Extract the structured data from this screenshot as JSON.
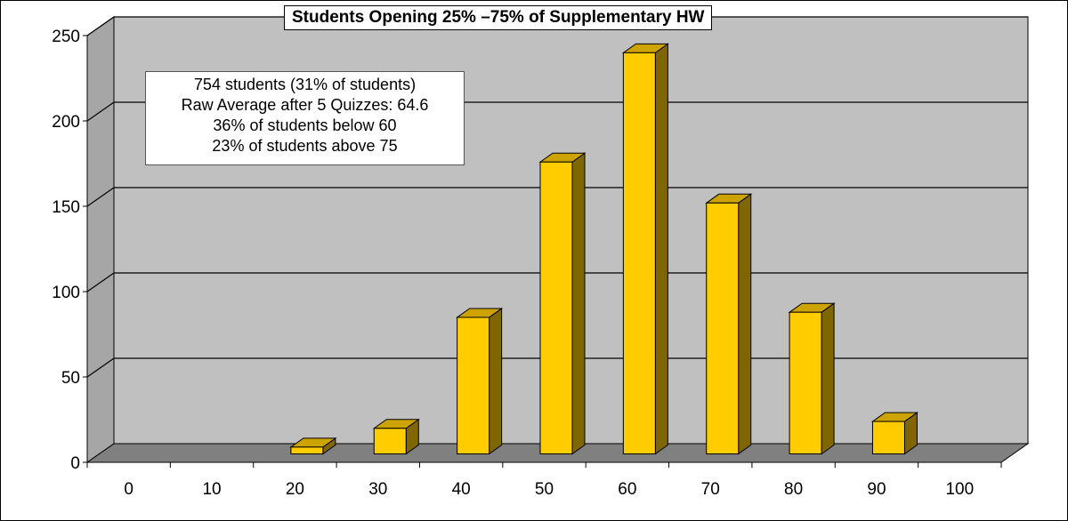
{
  "chart_data": {
    "type": "bar",
    "title": "Students Opening 25% –75% of Supplementary HW",
    "categories": [
      "0",
      "10",
      "20",
      "30",
      "40",
      "50",
      "60",
      "70",
      "80",
      "90",
      "100"
    ],
    "values": [
      0,
      0,
      4,
      15,
      80,
      171,
      235,
      147,
      83,
      19,
      0
    ],
    "yticks": [
      "0",
      "50",
      "100",
      "150",
      "200",
      "250"
    ],
    "ylim": [
      0,
      250
    ],
    "xlabel": "",
    "ylabel": "",
    "grid": true,
    "annotation": [
      "754 students (31% of students)",
      "Raw Average after 5 Quizzes: 64.6",
      "36% of students below 60",
      "23% of students above 75"
    ],
    "colors": {
      "bar_front": "#ffcc00",
      "bar_side": "#7f6600",
      "bar_top": "#cca300",
      "wall": "#c0c0c0",
      "floor": "#808080"
    }
  }
}
